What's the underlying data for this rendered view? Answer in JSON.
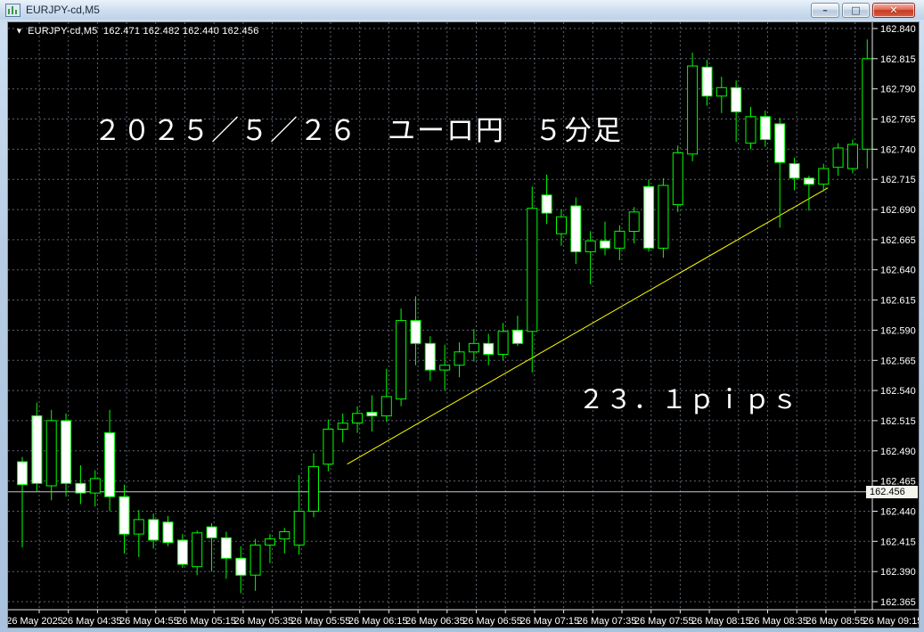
{
  "window": {
    "title": "EURJPY-cd,M5",
    "controls": {
      "minimize_label": "–",
      "restore_label": "□",
      "close_label": "✕"
    }
  },
  "chart": {
    "symbol_label": "EURJPY-cd,M5",
    "ohlc": {
      "open": "162.471",
      "high": "162.482",
      "low": "162.440",
      "close": "162.456"
    }
  },
  "chart_data": {
    "type": "candlestick",
    "symbol": "EURJPY-cd",
    "timeframe": "M5",
    "title": "EURJPY-cd,M5  162.471 162.482 162.440 162.456",
    "price_axis": {
      "min": 162.365,
      "max": 162.84,
      "step": 0.025,
      "labels": [
        "162.840",
        "162.815",
        "162.790",
        "162.765",
        "162.740",
        "162.715",
        "162.690",
        "162.665",
        "162.640",
        "162.615",
        "162.590",
        "162.565",
        "162.540",
        "162.515",
        "162.490",
        "162.465",
        "162.440",
        "162.415",
        "162.390",
        "162.365"
      ]
    },
    "time_axis": {
      "labels": [
        "26 May 2025",
        "26 May 04:35",
        "26 May 04:55",
        "26 May 05:15",
        "26 May 05:35",
        "26 May 05:55",
        "26 May 06:15",
        "26 May 06:35",
        "26 May 06:55",
        "26 May 07:15",
        "26 May 07:35",
        "26 May 07:55",
        "26 May 08:15",
        "26 May 08:35",
        "26 May 08:55",
        "26 May 09:15"
      ]
    },
    "candles": {
      "columns": [
        "time",
        "open",
        "high",
        "low",
        "close"
      ],
      "rows": [
        [
          "04:25",
          162.481,
          162.485,
          162.41,
          162.462
        ],
        [
          "04:30",
          162.519,
          162.53,
          162.456,
          162.463
        ],
        [
          "04:35",
          162.461,
          162.524,
          162.449,
          162.515
        ],
        [
          "04:40",
          162.515,
          162.521,
          162.452,
          162.463
        ],
        [
          "04:45",
          162.463,
          162.478,
          162.446,
          162.455
        ],
        [
          "04:50",
          162.455,
          162.474,
          162.444,
          162.467
        ],
        [
          "04:55",
          162.505,
          162.524,
          162.44,
          162.452
        ],
        [
          "05:00",
          162.452,
          162.462,
          162.405,
          162.421
        ],
        [
          "05:05",
          162.421,
          162.441,
          162.402,
          162.433
        ],
        [
          "05:10",
          162.433,
          162.438,
          162.409,
          162.416
        ],
        [
          "05:15",
          162.431,
          162.436,
          162.411,
          162.414
        ],
        [
          "05:20",
          162.416,
          162.421,
          162.393,
          162.396
        ],
        [
          "05:25",
          162.394,
          162.424,
          162.387,
          162.422
        ],
        [
          "05:30",
          162.427,
          162.43,
          162.39,
          162.418
        ],
        [
          "05:35",
          162.418,
          162.423,
          162.384,
          162.401
        ],
        [
          "05:40",
          162.401,
          162.411,
          162.372,
          162.387
        ],
        [
          "05:45",
          162.387,
          162.417,
          162.374,
          162.412
        ],
        [
          "05:50",
          162.412,
          162.421,
          162.397,
          162.417
        ],
        [
          "05:55",
          162.417,
          162.426,
          162.405,
          162.423
        ],
        [
          "06:00",
          162.412,
          162.47,
          162.404,
          162.44
        ],
        [
          "06:05",
          162.44,
          162.488,
          162.435,
          162.477
        ],
        [
          "06:10",
          162.479,
          162.516,
          162.473,
          162.508
        ],
        [
          "06:15",
          162.508,
          162.521,
          162.497,
          162.513
        ],
        [
          "06:20",
          162.513,
          162.527,
          162.505,
          162.521
        ],
        [
          "06:25",
          162.522,
          162.536,
          162.506,
          162.519
        ],
        [
          "06:30",
          162.519,
          162.558,
          162.514,
          162.535
        ],
        [
          "06:35",
          162.533,
          162.608,
          162.527,
          162.598
        ],
        [
          "06:40",
          162.598,
          162.618,
          162.561,
          162.579
        ],
        [
          "06:45",
          162.579,
          162.585,
          162.548,
          162.557
        ],
        [
          "06:50",
          162.557,
          162.578,
          162.54,
          162.561
        ],
        [
          "06:55",
          162.561,
          162.58,
          162.551,
          162.572
        ],
        [
          "07:00",
          162.572,
          162.591,
          162.564,
          162.579
        ],
        [
          "07:05",
          162.579,
          162.587,
          162.561,
          162.57
        ],
        [
          "07:10",
          162.57,
          162.596,
          162.565,
          162.589
        ],
        [
          "07:15",
          162.59,
          162.602,
          162.577,
          162.579
        ],
        [
          "07:20",
          162.589,
          162.709,
          162.555,
          162.691
        ],
        [
          "07:25",
          162.702,
          162.719,
          162.678,
          162.687
        ],
        [
          "07:30",
          162.67,
          162.69,
          162.66,
          162.684
        ],
        [
          "07:35",
          162.693,
          162.7,
          162.645,
          162.655
        ],
        [
          "07:40",
          162.655,
          162.672,
          162.628,
          162.664
        ],
        [
          "07:45",
          162.664,
          162.68,
          162.652,
          162.658
        ],
        [
          "07:50",
          162.658,
          162.677,
          162.648,
          162.672
        ],
        [
          "07:55",
          162.672,
          162.692,
          162.662,
          162.688
        ],
        [
          "08:00",
          162.709,
          162.715,
          162.655,
          162.658
        ],
        [
          "08:05",
          162.658,
          162.716,
          162.65,
          162.71
        ],
        [
          "08:10",
          162.694,
          162.743,
          162.688,
          162.737
        ],
        [
          "08:15",
          162.736,
          162.82,
          162.73,
          162.809
        ],
        [
          "08:20",
          162.808,
          162.814,
          162.776,
          162.784
        ],
        [
          "08:25",
          162.784,
          162.8,
          162.77,
          162.791
        ],
        [
          "08:30",
          162.791,
          162.797,
          162.746,
          162.771
        ],
        [
          "08:35",
          162.745,
          162.775,
          162.74,
          162.767
        ],
        [
          "08:40",
          162.767,
          162.772,
          162.742,
          162.748
        ],
        [
          "08:45",
          162.761,
          162.766,
          162.675,
          162.729
        ],
        [
          "08:50",
          162.728,
          162.733,
          162.706,
          162.716
        ],
        [
          "08:55",
          162.716,
          162.718,
          162.689,
          162.711
        ],
        [
          "09:00",
          162.711,
          162.728,
          162.705,
          162.724
        ],
        [
          "09:05",
          162.725,
          162.745,
          162.718,
          162.741
        ],
        [
          "09:10",
          162.724,
          162.748,
          162.72,
          162.744
        ],
        [
          "09:15",
          162.74,
          162.831,
          162.724,
          162.815
        ]
      ]
    },
    "current_price_line": {
      "price": 162.456,
      "label": "162.456",
      "color": "#c8c8c8"
    },
    "trendline": {
      "from_bar": 22.3,
      "from_price": 162.479,
      "to_bar": 55.3,
      "to_price": 162.708,
      "color": "#ffff00"
    },
    "annotations": {
      "date_label": {
        "text": "２０２５／５／２６　ユーロ円　５分足"
      },
      "pips_label": {
        "text": "２３．１ｐｉｐｓ"
      }
    },
    "colors": {
      "background": "#000000",
      "grid": "#5b6672",
      "candle_border": "#00ff00",
      "bull_body": "#000000",
      "bear_body": "#ffffff",
      "axis_text": "#ffffff",
      "axis_line": "#e8e8e8"
    },
    "grid": true,
    "legend_position": "none"
  }
}
